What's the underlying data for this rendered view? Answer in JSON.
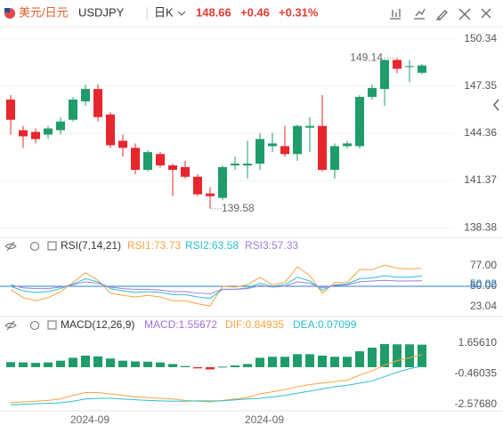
{
  "header": {
    "pair": "美元/日元",
    "symbol": "USDJPY",
    "period": "日K",
    "price": "148.66",
    "change": "+0.46",
    "change_pct": "+0.31%"
  },
  "chart_data": [
    {
      "type": "candlestick",
      "categories": [
        null,
        null,
        null,
        null,
        null,
        null,
        "2024-09",
        null,
        null,
        null,
        null,
        null,
        null,
        null,
        null,
        null,
        null,
        null,
        null,
        null,
        "2024-09",
        null,
        null,
        null,
        null,
        null,
        null,
        null,
        null,
        null,
        null,
        null,
        null,
        null
      ],
      "open": [
        146.5,
        144.56,
        144.45,
        144.28,
        144.56,
        145.22,
        146.39,
        147.17,
        145.56,
        143.89,
        143.44,
        142.05,
        143.05,
        142.33,
        142.22,
        141.61,
        140.55,
        140.27,
        142.33,
        142.33,
        142.44,
        143.55,
        143.55,
        143.05,
        144.72,
        144.83,
        142.05,
        143.55,
        143.55,
        146.67,
        147.17,
        149.01,
        148.56,
        148.2
      ],
      "high": [
        146.78,
        144.83,
        144.67,
        144.83,
        145.39,
        146.67,
        147.45,
        147.45,
        145.7,
        144.28,
        143.72,
        143.3,
        143.17,
        142.44,
        142.61,
        141.77,
        140.94,
        142.33,
        142.89,
        143.89,
        144.39,
        144.39,
        144.83,
        144.9,
        145.39,
        146.78,
        143.72,
        143.89,
        146.78,
        147.45,
        149.05,
        149.14,
        149.01,
        148.75
      ],
      "low": [
        144.28,
        143.44,
        143.72,
        144.0,
        144.28,
        145.11,
        146.11,
        145.11,
        143.44,
        142.89,
        141.77,
        141.94,
        142.2,
        140.38,
        141.5,
        140.38,
        139.58,
        140.11,
        142.05,
        141.5,
        142.05,
        143.17,
        142.89,
        142.61,
        143.17,
        141.94,
        141.5,
        143.4,
        143.4,
        146.5,
        146.11,
        148.17,
        147.61,
        148.1
      ],
      "close": [
        145.22,
        144.17,
        144.0,
        144.67,
        145.11,
        146.5,
        147.17,
        145.39,
        143.61,
        143.44,
        142.05,
        143.17,
        142.33,
        142.05,
        141.61,
        140.5,
        140.38,
        142.22,
        142.44,
        142.44,
        144.0,
        143.72,
        143.05,
        144.83,
        144.83,
        142.05,
        143.55,
        143.72,
        146.67,
        147.23,
        149.01,
        148.45,
        148.62,
        148.66
      ],
      "up_color": "#1f9c6a",
      "down_color": "#e8262d",
      "ylim": [
        138.05,
        150.95
      ],
      "yticks": [
        138.38,
        141.37,
        144.36,
        147.35,
        150.34
      ],
      "grid": true,
      "max_label": 149.14,
      "min_label": 139.58
    },
    {
      "type": "line",
      "title": "RSI(7,14,21)",
      "series": [
        {
          "name": "RSI1:73.73",
          "color": "#f5a340",
          "values": [
            46,
            35,
            31,
            35,
            43,
            55,
            68,
            58,
            41,
            38,
            36,
            38,
            36,
            31,
            31,
            27,
            24,
            50,
            49,
            52,
            62,
            52,
            55,
            76,
            64,
            41,
            55,
            55,
            72,
            72,
            78,
            74,
            73,
            73.73
          ]
        },
        {
          "name": "RSI2:63.58",
          "color": "#2bbfd0",
          "values": [
            50,
            44,
            42,
            43,
            47,
            53,
            60,
            56,
            47,
            44,
            42,
            43,
            42,
            39,
            39,
            36,
            34,
            46,
            46,
            48,
            54,
            50,
            52,
            62,
            57,
            45,
            52,
            53,
            60,
            61,
            64,
            62,
            62,
            63.58
          ]
        },
        {
          "name": "RSI3:57.33",
          "color": "#a07ed8",
          "values": [
            52,
            48,
            47,
            47,
            49,
            52,
            56,
            54,
            49,
            47,
            46,
            46,
            45,
            43,
            43,
            41,
            40,
            46,
            46,
            47,
            51,
            49,
            50,
            56,
            54,
            48,
            51,
            52,
            56,
            57,
            58,
            57,
            57,
            57.33
          ]
        }
      ],
      "ylim": [
        14.8,
        87.6
      ],
      "yticks": [
        23.04,
        {
          "value": 50,
          "label": "50.00"
        },
        {
          "value": 77,
          "label": "77.00"
        }
      ],
      "hline": {
        "value": 50.02,
        "color": "#2a7fd4"
      }
    },
    {
      "type": "macd",
      "title": "MACD(12,26,9)",
      "series": [
        {
          "name": "MACD:1.55672",
          "kind": "bar",
          "color": "#a070d8",
          "up_color": "#1f9c6a",
          "down_color": "#e8262d",
          "values": [
            0.35,
            0.33,
            0.3,
            0.33,
            0.45,
            0.65,
            0.8,
            0.75,
            0.6,
            0.45,
            0.4,
            0.38,
            0.33,
            0.22,
            0.08,
            -0.08,
            -0.15,
            0.04,
            0.12,
            0.22,
            0.65,
            0.72,
            0.72,
            0.9,
            0.9,
            0.8,
            0.72,
            0.72,
            1.1,
            1.35,
            1.6,
            1.58,
            1.58,
            1.55672
          ]
        },
        {
          "name": "DIF:0.84935",
          "kind": "line",
          "color": "#f5a340",
          "values": [
            -2.45,
            -2.4,
            -2.35,
            -2.3,
            -2.2,
            -1.95,
            -1.75,
            -1.75,
            -1.85,
            -1.95,
            -2.05,
            -2.1,
            -2.15,
            -2.2,
            -2.3,
            -2.35,
            -2.4,
            -2.3,
            -2.2,
            -2.1,
            -1.85,
            -1.7,
            -1.55,
            -1.35,
            -1.2,
            -1.1,
            -1.0,
            -0.9,
            -0.55,
            -0.25,
            0.15,
            0.45,
            0.65,
            0.84935
          ]
        },
        {
          "name": "DEA:0.07099",
          "kind": "line",
          "color": "#2bbfd0",
          "values": [
            -2.6,
            -2.57,
            -2.53,
            -2.5,
            -2.46,
            -2.35,
            -2.2,
            -2.15,
            -2.15,
            -2.2,
            -2.25,
            -2.3,
            -2.33,
            -2.35,
            -2.35,
            -2.33,
            -2.33,
            -2.32,
            -2.26,
            -2.2,
            -2.15,
            -2.05,
            -1.95,
            -1.8,
            -1.65,
            -1.5,
            -1.35,
            -1.25,
            -1.1,
            -0.95,
            -0.65,
            -0.35,
            -0.1,
            0.07099
          ]
        }
      ],
      "ylim": [
        -2.89,
        2.15
      ],
      "yticks": [
        {
          "value": -2.5768,
          "label": "-2.57680"
        },
        -0.46035,
        {
          "value": 1.6561,
          "label": "1.65610"
        }
      ]
    }
  ]
}
